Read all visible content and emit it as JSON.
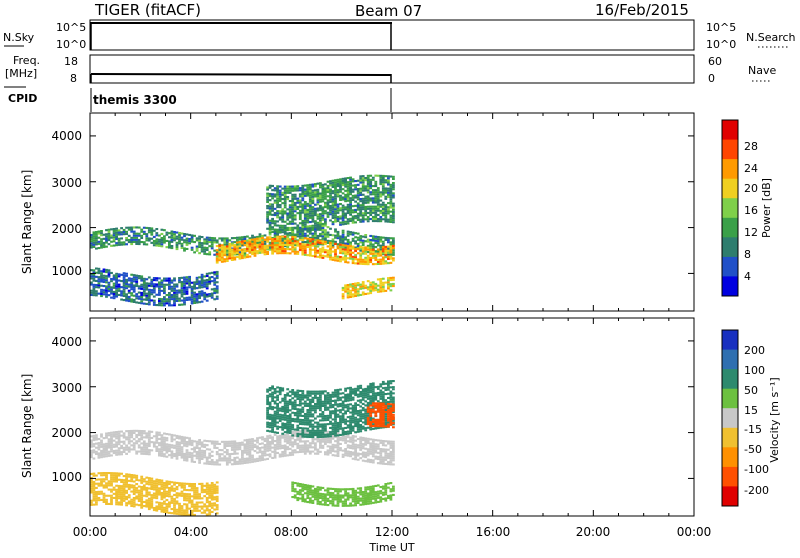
{
  "header": {
    "radar": "TIGER (fitACF)",
    "beam": "Beam 07",
    "date": "16/Feb/2015"
  },
  "top_panels": {
    "nsky_label": "N.Sky",
    "nsky_ticks_left": [
      "10^5",
      "10^0"
    ],
    "nsky_ticks_right": [
      "10^5",
      "10^0"
    ],
    "nsearch_label": "N.Search",
    "freq_label_line1": "Freq.",
    "freq_label_line2": "[MHz]",
    "freq_ticks": [
      "18",
      "8"
    ],
    "nave_ticks": [
      "60",
      "0"
    ],
    "nave_label": "Nave",
    "cpid_label": "CPID",
    "cpid_value": "themis 3300"
  },
  "time_axis": {
    "label": "Time UT",
    "ticks": [
      "00:00",
      "04:00",
      "08:00",
      "12:00",
      "16:00",
      "20:00",
      "00:00"
    ]
  },
  "power_panel": {
    "ylabel": "Slant Range [km]",
    "yticks": [
      "4000",
      "3000",
      "2000",
      "1000"
    ],
    "colorbar_label": "Power [dB]",
    "colorbar_ticks": [
      "28",
      "24",
      "20",
      "16",
      "12",
      "8",
      "4"
    ],
    "colors": [
      "#0000e0",
      "#2050c8",
      "#2e7d6e",
      "#3aa048",
      "#7fd04a",
      "#f0d020",
      "#ff9a00",
      "#ff4500",
      "#e00000"
    ]
  },
  "velocity_panel": {
    "ylabel": "Slant Range [km]",
    "yticks": [
      "4000",
      "3000",
      "2000",
      "1000"
    ],
    "colorbar_label": "Velocity [m s⁻¹]",
    "colorbar_ticks": [
      "200",
      "100",
      "50",
      "15",
      "-15",
      "-50",
      "-100",
      "-200"
    ],
    "colors": [
      "#1830c0",
      "#2f6fb0",
      "#2e8a6e",
      "#6cc040",
      "#c8c8c8",
      "#f0c030",
      "#ff9000",
      "#ff5000",
      "#e00000"
    ]
  },
  "chart_data": {
    "type": "heatmap",
    "x_range_hours": [
      0,
      24
    ],
    "y_range_km": [
      180,
      4500
    ],
    "data_end_hour": 12,
    "power_bands": [
      {
        "t0": 0.0,
        "t1": 12.0,
        "r0": 1500,
        "r1": 1900,
        "dB": 12
      },
      {
        "t0": 5.0,
        "t1": 12.0,
        "r0": 1300,
        "r1": 1700,
        "dB": 24
      },
      {
        "t0": 0.0,
        "t1": 5.0,
        "r0": 400,
        "r1": 1000,
        "dB": 8
      },
      {
        "t0": 10.0,
        "t1": 12.0,
        "r0": 500,
        "r1": 800,
        "dB": 22
      },
      {
        "t0": 7.0,
        "t1": 12.0,
        "r0": 2000,
        "r1": 3000,
        "dB": 12
      }
    ],
    "velocity_bands": [
      {
        "t0": 0.0,
        "t1": 12.0,
        "r0": 1400,
        "r1": 1900,
        "v": 0
      },
      {
        "t0": 0.0,
        "t1": 5.0,
        "r0": 300,
        "r1": 1000,
        "v": -20
      },
      {
        "t0": 8.0,
        "t1": 12.0,
        "r0": 500,
        "r1": 900,
        "v": 40
      },
      {
        "t0": 7.0,
        "t1": 12.0,
        "r0": 2000,
        "r1": 3000,
        "v": 60
      },
      {
        "t0": 11.0,
        "t1": 12.0,
        "r0": 2000,
        "r1": 2500,
        "v": -180
      }
    ]
  }
}
